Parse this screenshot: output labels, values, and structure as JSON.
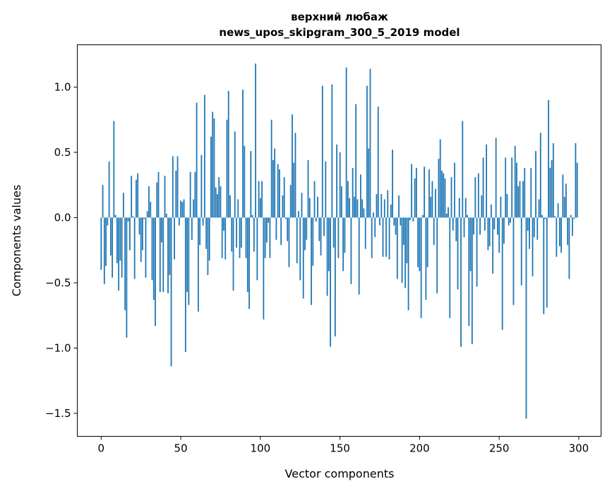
{
  "chart_data": {
    "type": "bar",
    "title": "верхний любаж",
    "subtitle": "news_upos_skipgram_300_5_2019 model",
    "xlabel": "Vector components",
    "ylabel": "Components values",
    "xlim": [
      -15,
      314
    ],
    "ylim": [
      -1.676,
      1.324
    ],
    "xticks": [
      0,
      50,
      100,
      150,
      200,
      250,
      300
    ],
    "xtick_labels": [
      "0",
      "50",
      "100",
      "150",
      "200",
      "250",
      "300"
    ],
    "yticks": [
      -1.5,
      -1.0,
      -0.5,
      0.0,
      0.5,
      1.0
    ],
    "ytick_labels": [
      "−1.5",
      "−1.0",
      "−0.5",
      "0.0",
      "0.5",
      "1.0"
    ],
    "grid": false,
    "bar_color": "#1f77b4",
    "values": [
      -0.4,
      0.25,
      -0.51,
      -0.37,
      -0.06,
      0.43,
      -0.29,
      -0.46,
      0.74,
      0.02,
      -0.35,
      -0.56,
      -0.33,
      -0.46,
      0.19,
      -0.71,
      -0.92,
      -0.03,
      -0.25,
      0.32,
      0.01,
      -0.47,
      0.29,
      0.34,
      -0.13,
      -0.34,
      -0.25,
      -0.01,
      -0.46,
      0.05,
      0.24,
      0.12,
      -0.48,
      -0.63,
      -0.83,
      0.27,
      0.35,
      -0.57,
      -0.19,
      -0.57,
      0.32,
      0.03,
      -0.58,
      -0.44,
      -1.14,
      0.47,
      -0.32,
      0.36,
      0.47,
      -0.06,
      0.13,
      0.12,
      0.14,
      -1.03,
      -0.57,
      -0.67,
      0.35,
      -0.17,
      0.14,
      0.35,
      0.88,
      -0.72,
      -0.21,
      0.48,
      -0.06,
      0.94,
      -0.24,
      -0.44,
      -0.33,
      0.62,
      0.81,
      0.76,
      0.23,
      0.18,
      0.31,
      0.24,
      -0.31,
      -0.1,
      -0.32,
      0.75,
      0.97,
      0.17,
      -0.26,
      -0.56,
      0.66,
      -0.23,
      0.14,
      -0.31,
      -0.23,
      0.98,
      0.55,
      -0.31,
      -0.57,
      -0.7,
      0.51,
      0.02,
      -0.26,
      1.18,
      -0.48,
      0.28,
      0.15,
      0.28,
      -0.78,
      -0.31,
      -0.19,
      -0.04,
      -0.31,
      0.75,
      0.44,
      0.53,
      -0.17,
      0.41,
      0.37,
      -0.21,
      0.17,
      0.31,
      -0.01,
      -0.18,
      -0.38,
      0.25,
      0.79,
      0.42,
      0.65,
      -0.35,
      0.05,
      -0.48,
      0.19,
      -0.62,
      -0.25,
      -0.17,
      0.44,
      0.15,
      -0.67,
      -0.37,
      0.28,
      -0.03,
      0.16,
      -0.18,
      -0.29,
      1.01,
      -0.14,
      0.43,
      -0.6,
      -0.41,
      -0.99,
      1.02,
      -0.23,
      -0.91,
      0.56,
      -0.31,
      0.5,
      0.24,
      -0.41,
      -0.27,
      1.15,
      0.28,
      0.15,
      -0.51,
      0.38,
      0.16,
      0.87,
      0.14,
      -0.59,
      0.33,
      0.14,
      0.07,
      -0.24,
      1.01,
      0.53,
      1.14,
      -0.31,
      0.04,
      -0.15,
      0.18,
      0.85,
      -0.06,
      0.18,
      -0.3,
      0.14,
      -0.3,
      0.21,
      -0.32,
      0.1,
      0.52,
      -0.06,
      -0.13,
      -0.47,
      0.17,
      -0.06,
      -0.5,
      -0.21,
      -0.54,
      -0.35,
      -0.71,
      -0.02,
      0.41,
      -0.03,
      0.3,
      0.38,
      -0.38,
      -0.41,
      -0.77,
      0.02,
      0.39,
      -0.63,
      -0.38,
      0.37,
      0.16,
      0.28,
      -0.21,
      0.22,
      -0.58,
      0.45,
      0.6,
      0.36,
      0.34,
      0.3,
      0.03,
      0.08,
      -0.77,
      0.31,
      -0.1,
      0.42,
      -0.18,
      -0.55,
      0.15,
      -0.99,
      0.74,
      -0.15,
      0.15,
      0.02,
      -0.83,
      -0.41,
      -0.97,
      -0.13,
      0.31,
      -0.53,
      0.34,
      -0.13,
      0.17,
      0.46,
      -0.1,
      0.56,
      -0.25,
      -0.22,
      0.1,
      -0.43,
      -0.09,
      0.61,
      -0.13,
      -0.27,
      0.16,
      -0.86,
      -0.2,
      0.46,
      0.18,
      -0.06,
      -0.04,
      0.46,
      -0.67,
      0.55,
      0.42,
      0.24,
      0.28,
      -0.52,
      0.28,
      0.38,
      -1.54,
      -0.1,
      -0.24,
      0.38,
      -0.45,
      -0.15,
      0.51,
      -0.17,
      0.14,
      0.65,
      0.02,
      -0.74,
      -0.01,
      -0.69,
      0.9,
      0.38,
      0.44,
      0.57,
      0.01,
      -0.3,
      0.11,
      -0.22,
      -0.27,
      0.33,
      0.16,
      0.26,
      -0.21,
      -0.47,
      0.02,
      -0.14,
      -0.01,
      0.57,
      0.42
    ]
  }
}
